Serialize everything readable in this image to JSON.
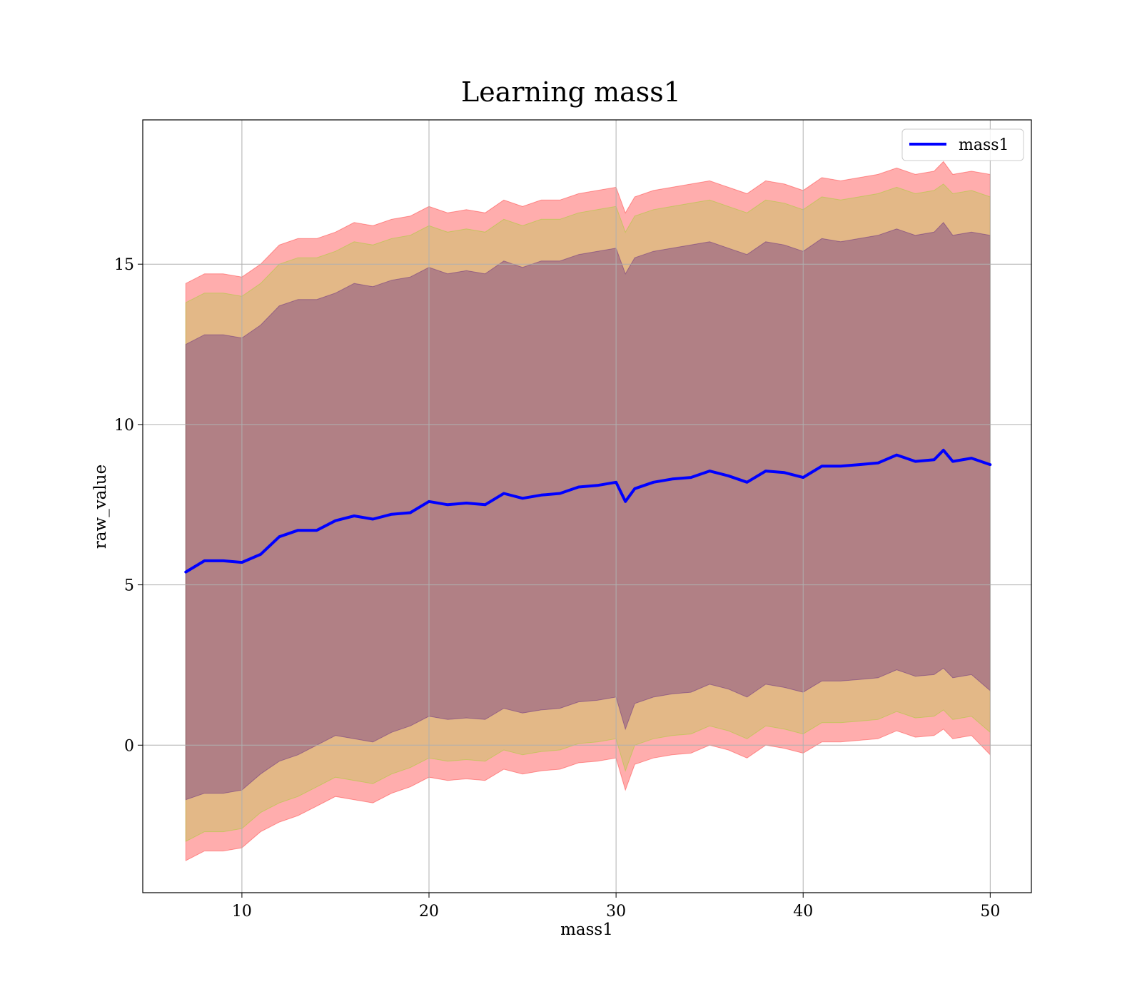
{
  "chart_data": {
    "type": "line",
    "title": "Learning mass1",
    "xlabel": "mass1",
    "ylabel": "raw_value",
    "xlim": [
      4.7,
      52.2
    ],
    "ylim": [
      -4.6,
      19.5
    ],
    "xticks": [
      10,
      20,
      30,
      40,
      50
    ],
    "yticks": [
      0,
      5,
      10,
      15
    ],
    "grid": true,
    "legend_position": "top-right",
    "x": [
      7,
      8,
      9,
      10,
      11,
      12,
      13,
      14,
      15,
      16,
      17,
      18,
      19,
      20,
      21,
      22,
      23,
      24,
      25,
      26,
      27,
      28,
      29,
      30,
      30.5,
      31,
      32,
      33,
      34,
      35,
      36,
      37,
      38,
      39,
      40,
      41,
      42,
      43,
      44,
      45,
      46,
      47,
      47.5,
      48,
      49,
      50
    ],
    "series": [
      {
        "name": "mass1",
        "color": "#0000ff",
        "values": [
          5.4,
          5.75,
          5.75,
          5.7,
          5.95,
          6.5,
          6.7,
          6.7,
          7.0,
          7.15,
          7.05,
          7.2,
          7.25,
          7.6,
          7.5,
          7.55,
          7.5,
          7.85,
          7.7,
          7.8,
          7.85,
          8.05,
          8.1,
          8.2,
          7.6,
          8.0,
          8.2,
          8.3,
          8.35,
          8.55,
          8.4,
          8.2,
          8.55,
          8.5,
          8.35,
          8.7,
          8.7,
          8.75,
          8.8,
          9.05,
          8.85,
          8.9,
          9.2,
          8.85,
          8.95,
          8.75
        ]
      }
    ],
    "bands": [
      {
        "color": "#ff0000",
        "opacity": 0.32,
        "lower": [
          -3.6,
          -3.3,
          -3.3,
          -3.2,
          -2.7,
          -2.4,
          -2.2,
          -1.9,
          -1.6,
          -1.7,
          -1.8,
          -1.5,
          -1.3,
          -1.0,
          -1.1,
          -1.05,
          -1.1,
          -0.75,
          -0.9,
          -0.8,
          -0.75,
          -0.55,
          -0.5,
          -0.4,
          -1.4,
          -0.6,
          -0.4,
          -0.3,
          -0.25,
          0.0,
          -0.15,
          -0.4,
          0.0,
          -0.1,
          -0.25,
          0.1,
          0.1,
          0.15,
          0.2,
          0.45,
          0.25,
          0.3,
          0.5,
          0.2,
          0.3,
          -0.3
        ],
        "upper": [
          14.4,
          14.7,
          14.7,
          14.6,
          15.0,
          15.6,
          15.8,
          15.8,
          16.0,
          16.3,
          16.2,
          16.4,
          16.5,
          16.8,
          16.6,
          16.7,
          16.6,
          17.0,
          16.8,
          17.0,
          17.0,
          17.2,
          17.3,
          17.4,
          16.6,
          17.1,
          17.3,
          17.4,
          17.5,
          17.6,
          17.4,
          17.2,
          17.6,
          17.5,
          17.3,
          17.7,
          17.6,
          17.7,
          17.8,
          18.0,
          17.8,
          17.9,
          18.2,
          17.8,
          17.9,
          17.8
        ]
      },
      {
        "color": "#80e000",
        "opacity": 0.22,
        "lower": [
          -3.0,
          -2.7,
          -2.7,
          -2.6,
          -2.1,
          -1.8,
          -1.6,
          -1.3,
          -1.0,
          -1.1,
          -1.2,
          -0.9,
          -0.7,
          -0.4,
          -0.5,
          -0.45,
          -0.5,
          -0.15,
          -0.3,
          -0.2,
          -0.15,
          0.05,
          0.1,
          0.2,
          -0.8,
          0.0,
          0.2,
          0.3,
          0.35,
          0.6,
          0.45,
          0.2,
          0.6,
          0.5,
          0.35,
          0.7,
          0.7,
          0.75,
          0.8,
          1.05,
          0.85,
          0.9,
          1.1,
          0.8,
          0.9,
          0.4
        ],
        "upper": [
          13.8,
          14.1,
          14.1,
          14.0,
          14.4,
          15.0,
          15.2,
          15.2,
          15.4,
          15.7,
          15.6,
          15.8,
          15.9,
          16.2,
          16.0,
          16.1,
          16.0,
          16.4,
          16.2,
          16.4,
          16.4,
          16.6,
          16.7,
          16.8,
          16.0,
          16.5,
          16.7,
          16.8,
          16.9,
          17.0,
          16.8,
          16.6,
          17.0,
          16.9,
          16.7,
          17.1,
          17.0,
          17.1,
          17.2,
          17.4,
          17.2,
          17.3,
          17.5,
          17.2,
          17.3,
          17.1
        ]
      },
      {
        "color": "#400080",
        "opacity": 0.3,
        "lower": [
          -1.7,
          -1.5,
          -1.5,
          -1.4,
          -0.9,
          -0.5,
          -0.3,
          0.0,
          0.3,
          0.2,
          0.1,
          0.4,
          0.6,
          0.9,
          0.8,
          0.85,
          0.8,
          1.15,
          1.0,
          1.1,
          1.15,
          1.35,
          1.4,
          1.5,
          0.5,
          1.3,
          1.5,
          1.6,
          1.65,
          1.9,
          1.75,
          1.5,
          1.9,
          1.8,
          1.65,
          2.0,
          2.0,
          2.05,
          2.1,
          2.35,
          2.15,
          2.2,
          2.4,
          2.1,
          2.2,
          1.7
        ],
        "upper": [
          12.5,
          12.8,
          12.8,
          12.7,
          13.1,
          13.7,
          13.9,
          13.9,
          14.1,
          14.4,
          14.3,
          14.5,
          14.6,
          14.9,
          14.7,
          14.8,
          14.7,
          15.1,
          14.9,
          15.1,
          15.1,
          15.3,
          15.4,
          15.5,
          14.7,
          15.2,
          15.4,
          15.5,
          15.6,
          15.7,
          15.5,
          15.3,
          15.7,
          15.6,
          15.4,
          15.8,
          15.7,
          15.8,
          15.9,
          16.1,
          15.9,
          16.0,
          16.3,
          15.9,
          16.0,
          15.9
        ]
      }
    ]
  }
}
